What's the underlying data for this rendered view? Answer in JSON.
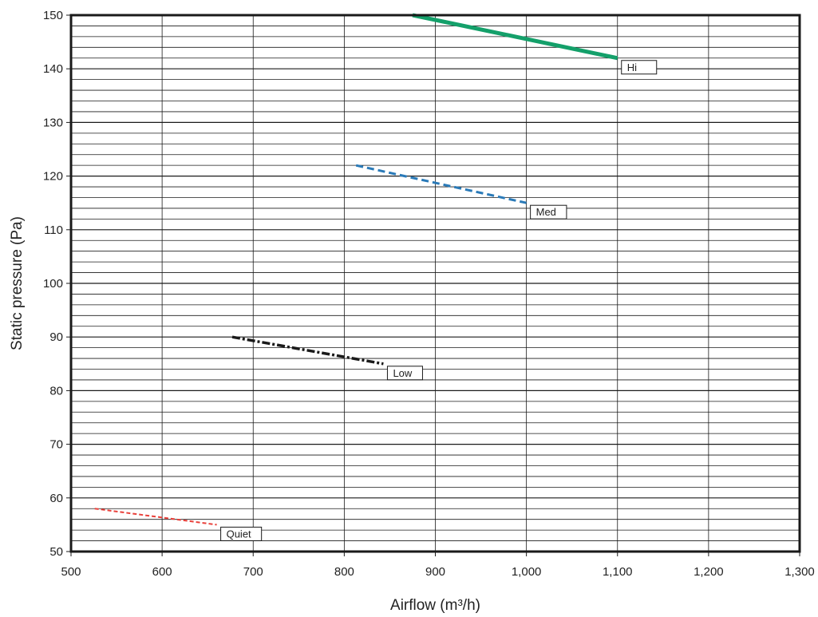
{
  "chart_data": {
    "type": "line",
    "title": "",
    "xlabel": "Airflow (m³/h)",
    "ylabel": "Static pressure (Pa)",
    "xlim": [
      500,
      1300
    ],
    "ylim": [
      50,
      150
    ],
    "x_ticks": [
      "500",
      "600",
      "700",
      "800",
      "900",
      "1,000",
      "1,100",
      "1,200",
      "1,300"
    ],
    "y_ticks": [
      "50",
      "60",
      "70",
      "80",
      "90",
      "100",
      "110",
      "120",
      "130",
      "140",
      "150"
    ],
    "grid": true,
    "minor_y_step": 2,
    "legend": "inline labels at line ends",
    "series": [
      {
        "name": "Hi",
        "color": "#14a06a",
        "style": "solid",
        "x": [
          875,
          1100
        ],
        "y": [
          150,
          142
        ]
      },
      {
        "name": "Med",
        "color": "#2a7ab8",
        "style": "dashed",
        "x": [
          813,
          1000
        ],
        "y": [
          122,
          115
        ]
      },
      {
        "name": "Low",
        "color": "#1a1a1a",
        "style": "dashdot",
        "x": [
          677,
          843
        ],
        "y": [
          90,
          85
        ]
      },
      {
        "name": "Quiet",
        "color": "#e8403a",
        "style": "dotted",
        "x": [
          526,
          660
        ],
        "y": [
          58,
          55
        ]
      }
    ]
  }
}
